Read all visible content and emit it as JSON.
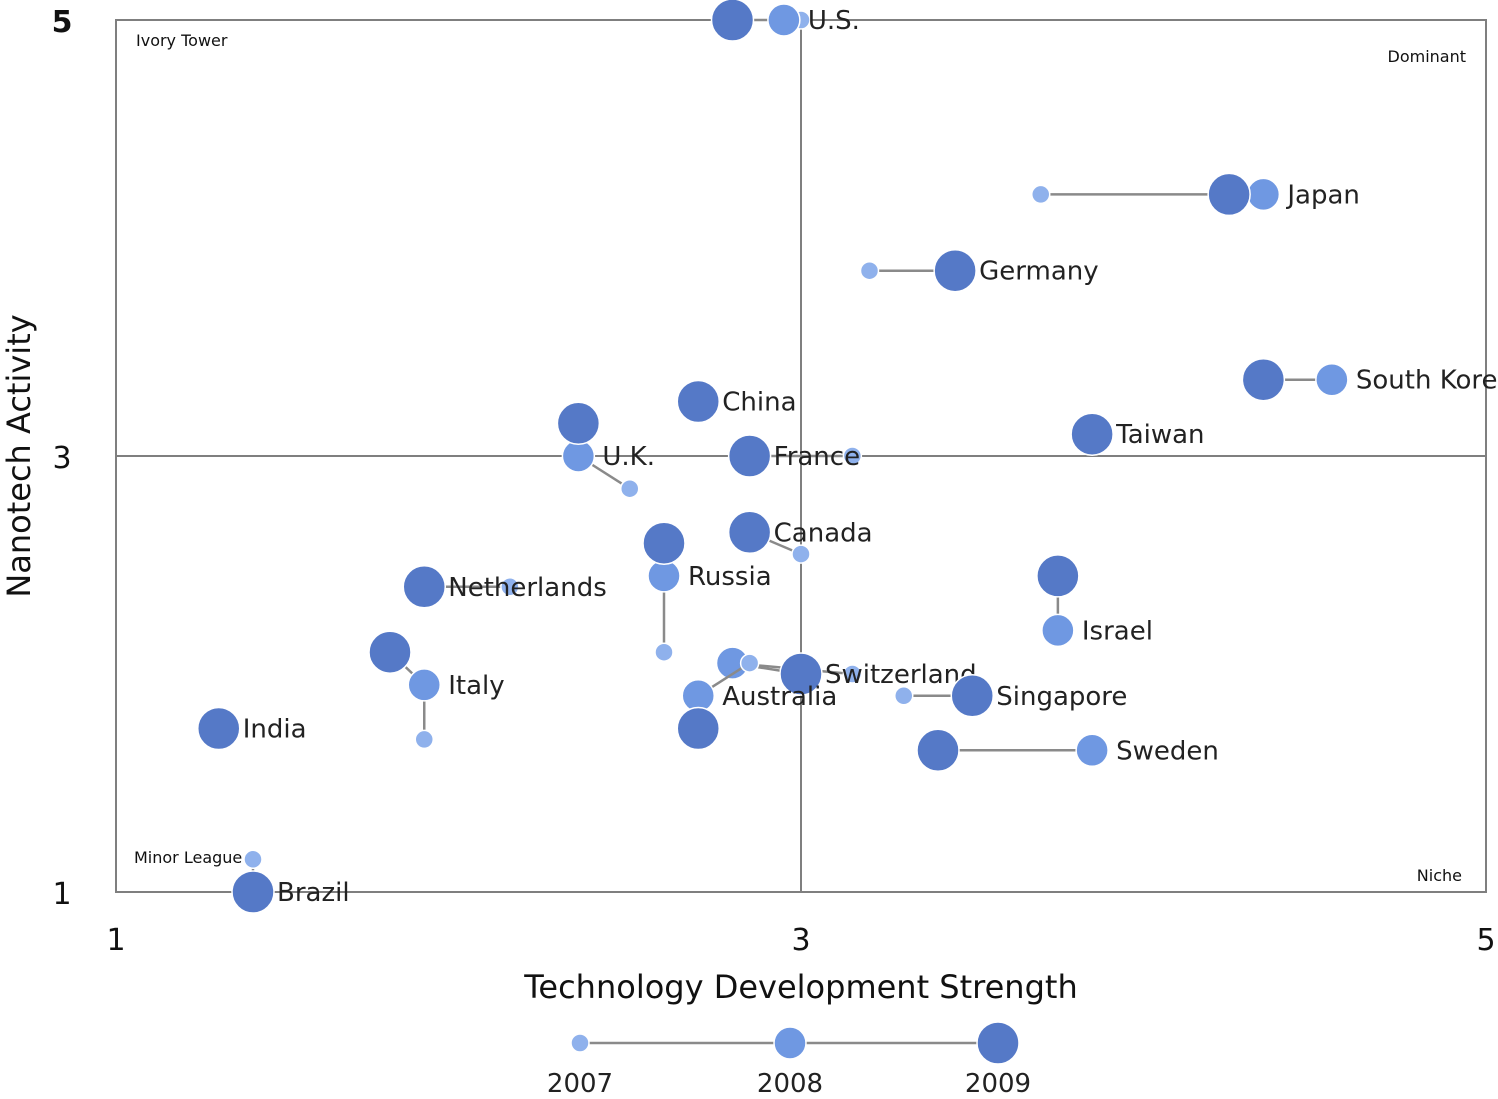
{
  "chart_data": {
    "type": "scatter",
    "title": "",
    "xlabel": "Technology Development Strength",
    "ylabel": "Nanotech Activity",
    "xlim": [
      1,
      5
    ],
    "ylim": [
      1,
      5
    ],
    "xticks": [
      "1",
      "3",
      "5"
    ],
    "yticks": [
      "1",
      "3",
      "5"
    ],
    "quadrants": {
      "top_left": "Ivory Tower",
      "top_right": "Dominant",
      "bottom_left": "Minor League",
      "bottom_right": "Niche"
    },
    "legend": {
      "years": [
        "2007",
        "2008",
        "2009"
      ],
      "placement": "bottom-center"
    },
    "colors": {
      "y2007": "#8FB1EC",
      "y2008": "#6F98E2",
      "y2009": "#5579C7",
      "line": "#8a8a8a",
      "axis": "#7f7f7f"
    },
    "countries": [
      {
        "name": "U.S.",
        "y2007": [
          3.0,
          5.0
        ],
        "y2008": [
          2.95,
          5.0
        ],
        "y2009": [
          2.8,
          5.0
        ]
      },
      {
        "name": "Japan",
        "y2007": [
          3.7,
          4.2
        ],
        "y2008": [
          4.35,
          4.2
        ],
        "y2009": [
          4.25,
          4.2
        ]
      },
      {
        "name": "Germany",
        "y2007": [
          3.2,
          3.85
        ],
        "y2008": [
          3.45,
          3.85
        ],
        "y2009": [
          3.45,
          3.85
        ]
      },
      {
        "name": "South Korea",
        "y2007": [
          4.55,
          3.35
        ],
        "y2008": [
          4.55,
          3.35
        ],
        "y2009": [
          4.35,
          3.35
        ]
      },
      {
        "name": "Taiwan",
        "y2007": [
          3.85,
          3.1
        ],
        "y2008": [
          3.85,
          3.1
        ],
        "y2009": [
          3.85,
          3.1
        ]
      },
      {
        "name": "China",
        "y2007": [
          2.7,
          3.25
        ],
        "y2008": [
          2.7,
          3.25
        ],
        "y2009": [
          2.7,
          3.25
        ]
      },
      {
        "name": "U.K.",
        "y2007": [
          2.5,
          2.85
        ],
        "y2008": [
          2.35,
          3.0
        ],
        "y2009": [
          2.35,
          3.15
        ]
      },
      {
        "name": "France",
        "y2007": [
          3.15,
          3.0
        ],
        "y2008": [
          2.85,
          3.0
        ],
        "y2009": [
          2.85,
          3.0
        ]
      },
      {
        "name": "Canada",
        "y2007": [
          3.0,
          2.55
        ],
        "y2008": [
          2.85,
          2.65
        ],
        "y2009": [
          2.85,
          2.65
        ]
      },
      {
        "name": "Russia",
        "y2007": [
          2.6,
          2.1
        ],
        "y2008": [
          2.6,
          2.45
        ],
        "y2009": [
          2.6,
          2.6
        ]
      },
      {
        "name": "Netherlands",
        "y2007": [
          2.15,
          2.4
        ],
        "y2008": [
          1.9,
          2.4
        ],
        "y2009": [
          1.9,
          2.4
        ]
      },
      {
        "name": "Israel",
        "y2007": [
          3.75,
          2.2
        ],
        "y2008": [
          3.75,
          2.2
        ],
        "y2009": [
          3.75,
          2.45
        ]
      },
      {
        "name": "Italy",
        "y2007": [
          1.9,
          1.7
        ],
        "y2008": [
          1.9,
          1.95
        ],
        "y2009": [
          1.8,
          2.1
        ]
      },
      {
        "name": "Switzerland",
        "y2007": [
          3.15,
          2.0
        ],
        "y2008": [
          2.8,
          2.05
        ],
        "y2009": [
          3.0,
          2.0
        ]
      },
      {
        "name": "Singapore",
        "y2007": [
          3.3,
          1.9
        ],
        "y2008": [
          3.5,
          1.9
        ],
        "y2009": [
          3.5,
          1.9
        ]
      },
      {
        "name": "Australia",
        "y2007": [
          2.85,
          2.05
        ],
        "y2008": [
          2.7,
          1.9
        ],
        "y2009": [
          2.7,
          1.75
        ]
      },
      {
        "name": "Sweden",
        "y2007": [
          3.85,
          1.65
        ],
        "y2008": [
          3.85,
          1.65
        ],
        "y2009": [
          3.4,
          1.65
        ]
      },
      {
        "name": "India",
        "y2007": [
          1.3,
          1.75
        ],
        "y2008": [
          1.3,
          1.75
        ],
        "y2009": [
          1.3,
          1.75
        ]
      },
      {
        "name": "Brazil",
        "y2007": [
          1.4,
          1.15
        ],
        "y2008": [
          1.4,
          1.0
        ],
        "y2009": [
          1.4,
          1.0
        ]
      }
    ]
  }
}
